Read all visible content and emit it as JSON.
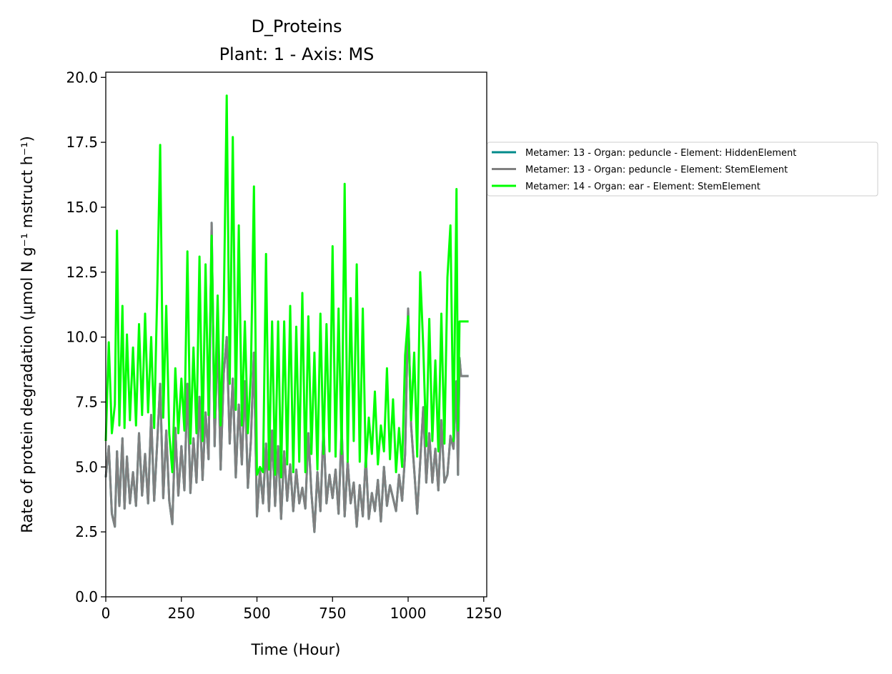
{
  "chart_data": {
    "type": "line",
    "title": "D_Proteins",
    "subtitle": "Plant: 1 - Axis: MS",
    "xlabel": "Time (Hour)",
    "ylabel": "Rate of protein degradation (µmol N g⁻¹ mstruct h⁻¹)",
    "xlim": [
      0,
      1260
    ],
    "ylim": [
      0,
      20.2
    ],
    "xticks": [
      0,
      250,
      500,
      750,
      1000,
      1250
    ],
    "xtick_labels": [
      "0",
      "250",
      "500",
      "750",
      "1000",
      "1250"
    ],
    "yticks": [
      0,
      2.5,
      5,
      7.5,
      10,
      12.5,
      15,
      17.5,
      20
    ],
    "ytick_labels": [
      "0.0",
      "2.5",
      "5.0",
      "7.5",
      "10.0",
      "12.5",
      "15.0",
      "17.5",
      "20.0"
    ],
    "grid": false,
    "legend_position": "outside right",
    "series": [
      {
        "name": "Metamer: 13 - Organ: peduncle - Element: HiddenElement",
        "color": "#008b8b",
        "x": [
          0,
          10,
          20,
          30,
          37,
          45,
          55,
          62,
          70,
          80,
          90,
          100,
          110,
          120,
          130,
          140,
          150,
          160,
          170,
          180,
          190,
          200,
          210,
          220,
          230,
          240,
          250,
          260,
          270,
          280,
          290,
          300,
          310,
          320,
          330,
          340,
          350,
          360,
          370,
          380,
          390,
          400,
          410,
          420,
          430,
          440,
          450,
          460,
          470,
          480,
          490,
          500,
          510,
          520,
          530,
          540,
          550,
          560,
          570,
          580,
          590,
          600,
          610,
          620,
          630,
          640,
          650,
          660,
          670,
          680,
          690,
          700,
          710,
          720,
          730,
          740,
          750,
          760,
          770,
          780,
          790,
          800,
          810,
          820,
          830,
          840,
          850,
          860,
          870,
          880,
          890,
          900,
          910,
          920,
          930,
          940,
          950,
          960,
          970,
          980,
          990,
          1000,
          1010,
          1020,
          1030,
          1040,
          1050,
          1060,
          1070,
          1080,
          1090,
          1100,
          1110,
          1120,
          1130,
          1140,
          1150,
          1160,
          1165,
          1170,
          1175,
          1185,
          1200
        ],
        "y": [
          4.6,
          5.8,
          3.2,
          2.7,
          5.6,
          3.5,
          6.1,
          3.4,
          5.4,
          3.6,
          4.8,
          3.5,
          6.3,
          3.9,
          5.5,
          3.6,
          7.0,
          3.7,
          5.9,
          8.2,
          3.8,
          6.4,
          3.7,
          2.8,
          6.5,
          3.9,
          5.8,
          4.1,
          8.2,
          4.0,
          6.1,
          4.4,
          7.7,
          4.5,
          7.1,
          5.3,
          14.4,
          5.8,
          10.3,
          4.9,
          8.6,
          10.0,
          5.9,
          8.4,
          4.6,
          7.4,
          5.1,
          8.3,
          4.2,
          6.0,
          9.4,
          3.1,
          4.9,
          3.6,
          5.9,
          3.3,
          6.4,
          3.5,
          5.8,
          3.0,
          5.6,
          3.7,
          5.1,
          3.3,
          4.9,
          3.6,
          4.2,
          3.4,
          6.3,
          4.0,
          2.5,
          4.8,
          3.3,
          6.5,
          3.6,
          4.7,
          3.8,
          4.9,
          3.2,
          6.5,
          3.1,
          5.2,
          3.6,
          4.4,
          2.7,
          4.3,
          3.1,
          5.4,
          3.0,
          4.0,
          3.3,
          4.5,
          2.9,
          5.0,
          3.5,
          4.3,
          3.8,
          3.3,
          4.7,
          3.7,
          5.5,
          11.1,
          6.6,
          4.9,
          3.2,
          5.2,
          7.3,
          4.4,
          6.3,
          4.4,
          5.7,
          4.1,
          6.8,
          4.4,
          4.7,
          6.2,
          5.7,
          8.3,
          4.7,
          9.2,
          8.5,
          8.5,
          8.5
        ]
      },
      {
        "name": "Metamer: 13 - Organ: peduncle - Element: StemElement",
        "color": "#808080",
        "x": [
          0,
          10,
          20,
          30,
          37,
          45,
          55,
          62,
          70,
          80,
          90,
          100,
          110,
          120,
          130,
          140,
          150,
          160,
          170,
          180,
          190,
          200,
          210,
          220,
          230,
          240,
          250,
          260,
          270,
          280,
          290,
          300,
          310,
          320,
          330,
          340,
          350,
          360,
          370,
          380,
          390,
          400,
          410,
          420,
          430,
          440,
          450,
          460,
          470,
          480,
          490,
          500,
          510,
          520,
          530,
          540,
          550,
          560,
          570,
          580,
          590,
          600,
          610,
          620,
          630,
          640,
          650,
          660,
          670,
          680,
          690,
          700,
          710,
          720,
          730,
          740,
          750,
          760,
          770,
          780,
          790,
          800,
          810,
          820,
          830,
          840,
          850,
          860,
          870,
          880,
          890,
          900,
          910,
          920,
          930,
          940,
          950,
          960,
          970,
          980,
          990,
          1000,
          1010,
          1020,
          1030,
          1040,
          1050,
          1060,
          1070,
          1080,
          1090,
          1100,
          1110,
          1120,
          1130,
          1140,
          1150,
          1160,
          1165,
          1170,
          1175,
          1185,
          1200
        ],
        "y": [
          4.6,
          5.8,
          3.2,
          2.7,
          5.6,
          3.5,
          6.1,
          3.4,
          5.4,
          3.6,
          4.8,
          3.5,
          6.3,
          3.9,
          5.5,
          3.6,
          7.0,
          3.7,
          5.9,
          8.2,
          3.8,
          6.4,
          3.7,
          2.8,
          6.5,
          3.9,
          5.8,
          4.1,
          8.2,
          4.0,
          6.1,
          4.4,
          7.7,
          4.5,
          7.1,
          5.3,
          14.4,
          5.8,
          10.3,
          4.9,
          8.6,
          10.0,
          5.9,
          8.4,
          4.6,
          7.4,
          5.1,
          8.3,
          4.2,
          6.0,
          9.4,
          3.1,
          4.9,
          3.6,
          5.9,
          3.3,
          6.4,
          3.5,
          5.8,
          3.0,
          5.6,
          3.7,
          5.1,
          3.3,
          4.9,
          3.6,
          4.2,
          3.4,
          6.3,
          4.0,
          2.5,
          4.8,
          3.3,
          6.5,
          3.6,
          4.7,
          3.8,
          4.9,
          3.2,
          6.5,
          3.1,
          5.2,
          3.6,
          4.4,
          2.7,
          4.3,
          3.1,
          5.4,
          3.0,
          4.0,
          3.3,
          4.5,
          2.9,
          5.0,
          3.5,
          4.3,
          3.8,
          3.3,
          4.7,
          3.7,
          5.5,
          11.1,
          6.6,
          4.9,
          3.2,
          5.2,
          7.3,
          4.4,
          6.3,
          4.4,
          5.7,
          4.1,
          6.8,
          4.4,
          4.7,
          6.2,
          5.7,
          8.3,
          4.7,
          9.2,
          8.5,
          8.5,
          8.5
        ]
      },
      {
        "name": "Metamer: 14 - Organ: ear - Element: StemElement",
        "color": "#00ff00",
        "x": [
          0,
          10,
          20,
          30,
          37,
          45,
          55,
          62,
          70,
          80,
          90,
          100,
          110,
          120,
          130,
          140,
          150,
          160,
          170,
          180,
          190,
          200,
          210,
          220,
          230,
          240,
          250,
          260,
          270,
          280,
          290,
          300,
          310,
          320,
          330,
          340,
          350,
          360,
          370,
          380,
          390,
          400,
          410,
          420,
          430,
          440,
          450,
          460,
          470,
          480,
          490,
          500,
          510,
          520,
          530,
          540,
          550,
          560,
          570,
          580,
          590,
          600,
          610,
          620,
          630,
          640,
          650,
          660,
          670,
          680,
          690,
          700,
          710,
          720,
          730,
          740,
          750,
          760,
          770,
          780,
          790,
          800,
          810,
          820,
          830,
          840,
          850,
          860,
          870,
          880,
          890,
          900,
          910,
          920,
          930,
          940,
          950,
          960,
          970,
          980,
          990,
          1000,
          1010,
          1020,
          1030,
          1040,
          1050,
          1060,
          1070,
          1080,
          1090,
          1100,
          1110,
          1120,
          1130,
          1140,
          1150,
          1160,
          1165,
          1170,
          1175,
          1185,
          1200
        ],
        "y": [
          6.0,
          9.8,
          6.3,
          7.4,
          14.1,
          6.6,
          11.2,
          6.5,
          10.1,
          6.8,
          9.6,
          6.6,
          10.5,
          7.0,
          10.9,
          7.1,
          10.0,
          6.5,
          11.6,
          17.4,
          6.9,
          11.2,
          6.3,
          4.8,
          8.8,
          6.3,
          8.4,
          6.4,
          13.3,
          5.9,
          9.6,
          6.3,
          13.1,
          6.0,
          12.8,
          7.0,
          13.9,
          6.9,
          11.6,
          6.6,
          11.0,
          19.3,
          8.2,
          17.7,
          7.2,
          14.3,
          6.6,
          10.6,
          6.3,
          8.6,
          15.8,
          4.7,
          5.0,
          4.8,
          13.2,
          4.9,
          10.6,
          4.7,
          10.6,
          4.6,
          10.6,
          5.1,
          11.2,
          4.8,
          10.4,
          5.2,
          11.7,
          4.8,
          10.8,
          5.5,
          9.4,
          4.9,
          10.9,
          5.5,
          10.5,
          5.6,
          13.5,
          5.4,
          11.1,
          5.5,
          15.9,
          5.2,
          11.5,
          6.0,
          12.8,
          5.2,
          11.1,
          5.0,
          6.9,
          5.5,
          7.9,
          5.1,
          6.6,
          5.6,
          8.8,
          5.3,
          7.6,
          4.8,
          6.5,
          5.0,
          9.3,
          10.8,
          6.8,
          9.4,
          5.4,
          12.5,
          9.6,
          5.8,
          10.7,
          6.0,
          9.1,
          5.6,
          10.9,
          5.9,
          12.3,
          14.3,
          6.0,
          15.7,
          6.4,
          10.6,
          10.6,
          10.6,
          10.6
        ]
      }
    ]
  }
}
